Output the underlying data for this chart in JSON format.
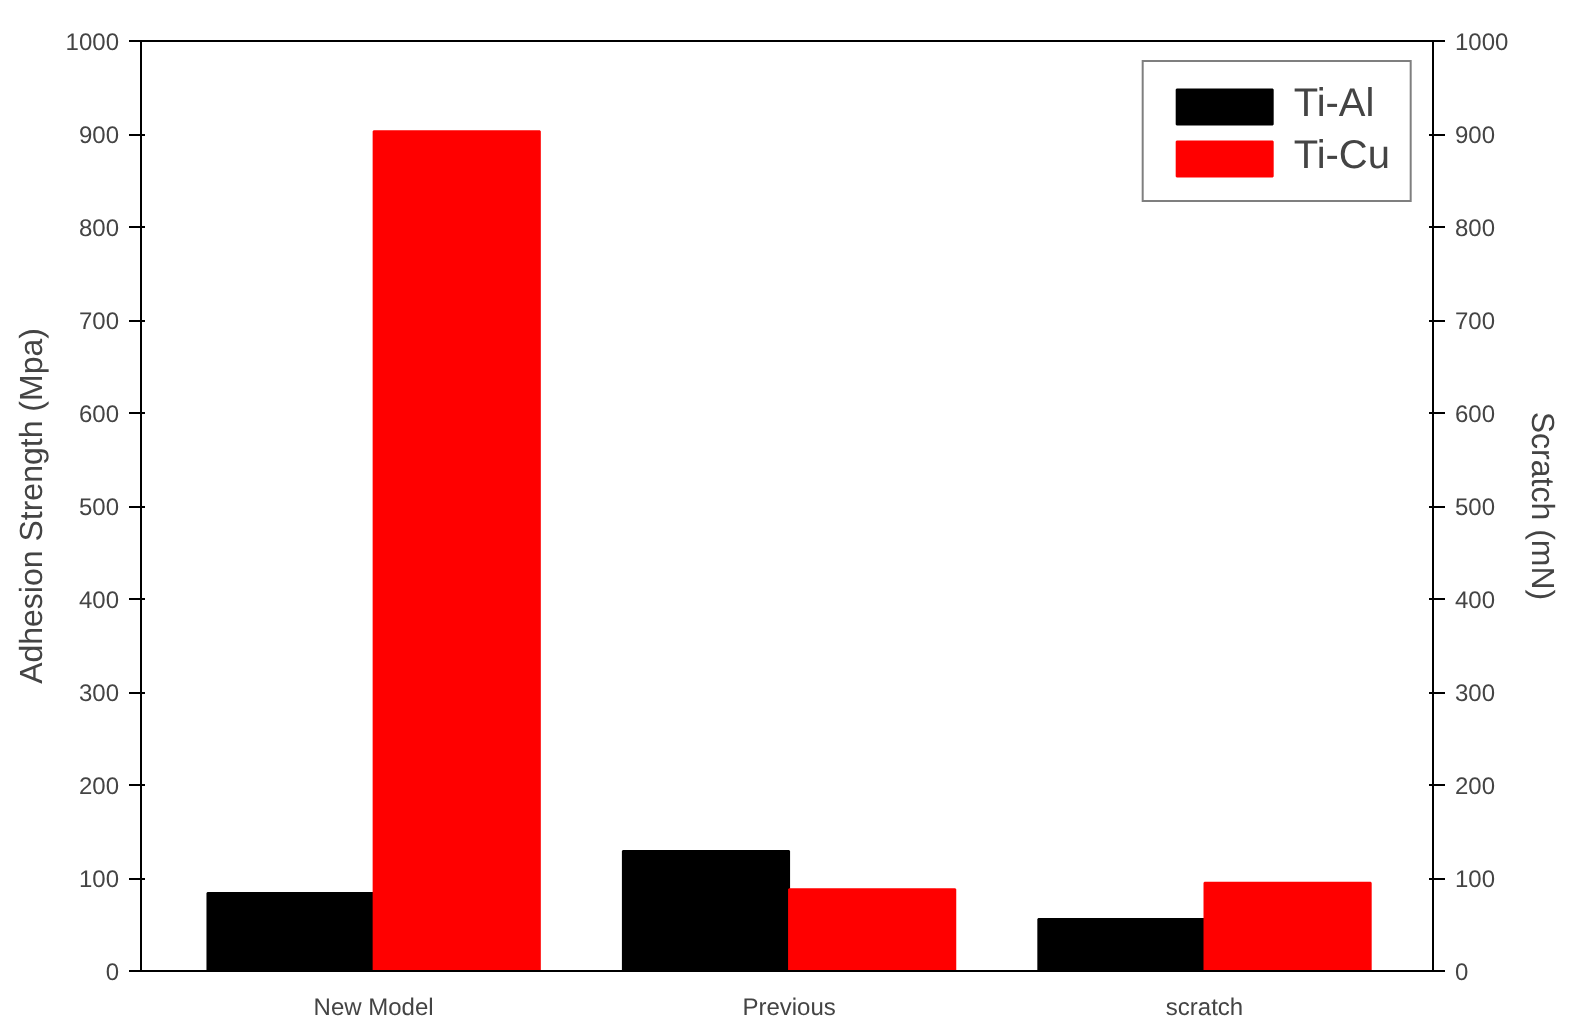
{
  "chart_data": {
    "type": "bar",
    "ylabel": "Adhesion Strength (Mpa)",
    "y2label": "Scratch (mN)",
    "categories": [
      "New Model",
      "Previous",
      "scratch"
    ],
    "series": [
      {
        "name": "Ti-Al",
        "color": "#000000",
        "values": [
          84,
          129,
          56
        ]
      },
      {
        "name": "Ti-Cu",
        "color": "#ff0000",
        "values": [
          903,
          88,
          95
        ]
      }
    ],
    "ylim": [
      0,
      1000
    ],
    "yticks": [
      0,
      100,
      200,
      300,
      400,
      500,
      600,
      700,
      800,
      900,
      1000
    ],
    "y2lim": [
      0,
      1000
    ],
    "y2ticks": [
      0,
      100,
      200,
      300,
      400,
      500,
      600,
      700,
      800,
      900,
      1000
    ],
    "grid": false,
    "legend": "top right"
  }
}
